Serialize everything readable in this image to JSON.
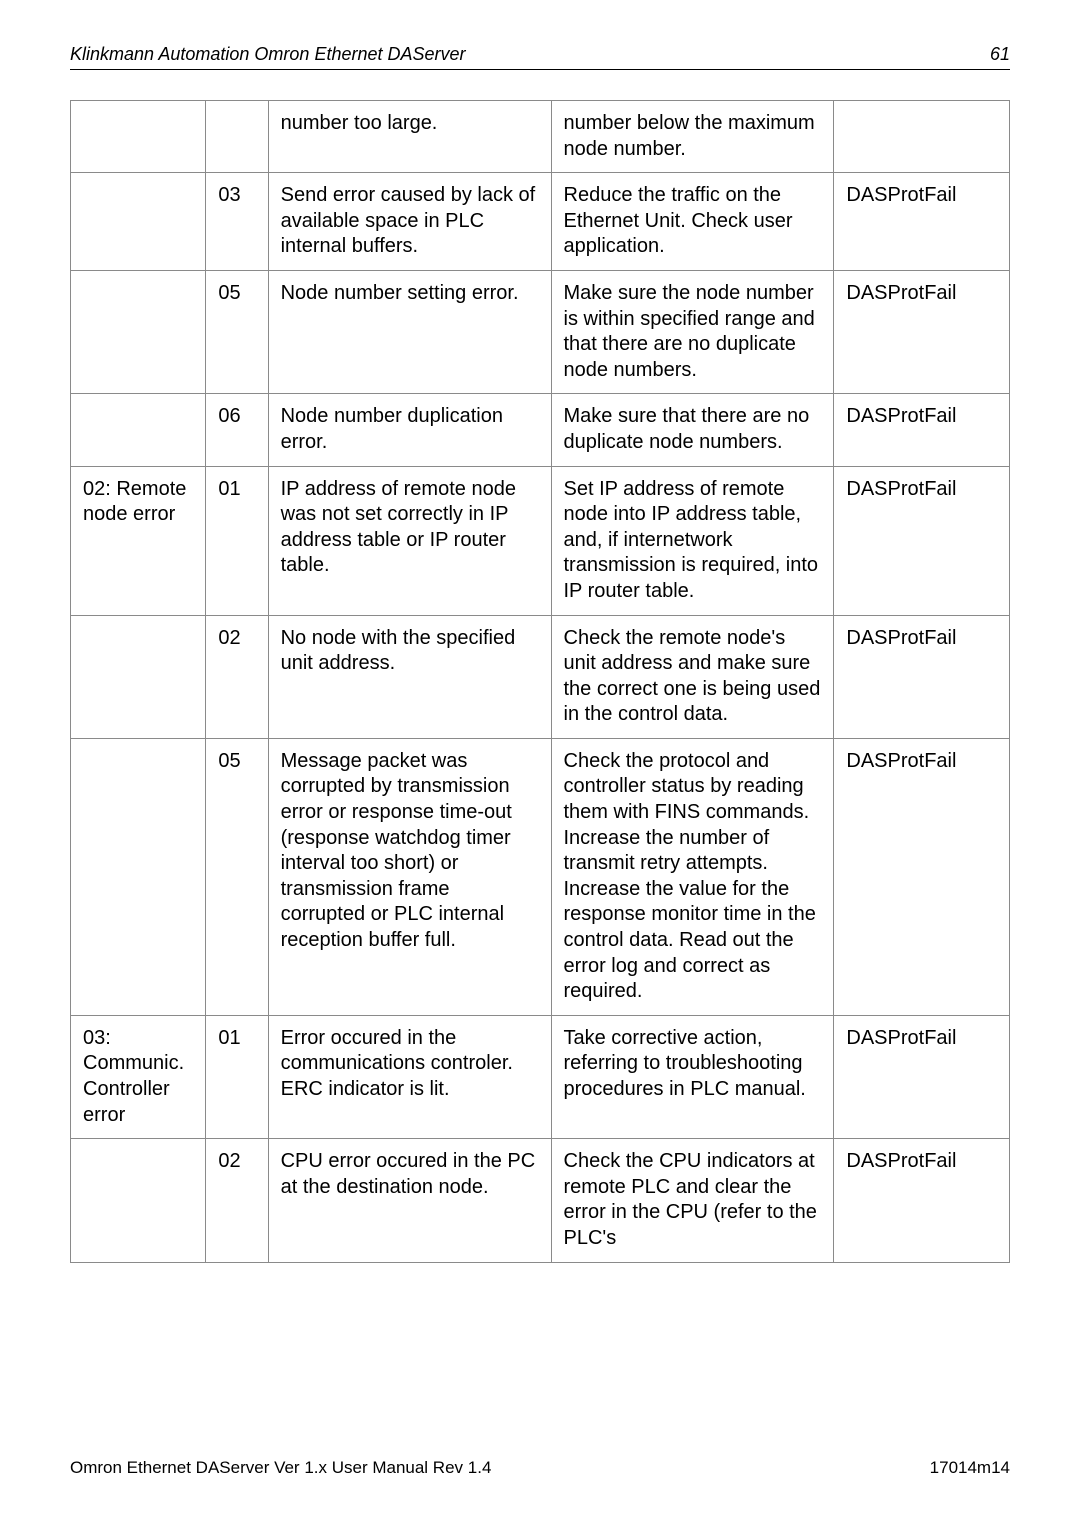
{
  "header": {
    "title": "Klinkmann Automation Omron Ethernet DAServer",
    "page": "61"
  },
  "footer": {
    "left": "Omron Ethernet DAServer Ver 1.x User Manual Rev 1.4",
    "right": "17014m14"
  },
  "rows": [
    {
      "c1": "",
      "c2": "",
      "c3": "number too large.",
      "c4": "number below the maximum node number.",
      "c5": ""
    },
    {
      "c1": "",
      "c2": "03",
      "c3": "Send error caused by lack of available space in PLC internal buffers.",
      "c4": "Reduce the traffic on the Ethernet Unit. Check user application.",
      "c5": "DASProtFail"
    },
    {
      "c1": "",
      "c2": "05",
      "c3": "Node number setting error.",
      "c4": "Make sure the node number is within specified range and that there are no duplicate node numbers.",
      "c5": "DASProtFail"
    },
    {
      "c1": "",
      "c2": "06",
      "c3": "Node number duplication error.",
      "c4": "Make sure that there are no duplicate node numbers.",
      "c5": "DASProtFail"
    },
    {
      "c1": "02: Remote node error",
      "c2": "01",
      "c3": "IP address of remote node was not set correctly in IP address table or IP router table.",
      "c4": "Set IP address of remote node into IP address table, and, if internetwork transmission is required, into IP router table.",
      "c5": "DASProtFail"
    },
    {
      "c1": "",
      "c2": "02",
      "c3": "No node with the specified unit address.",
      "c4": "Check the remote node's unit address and make sure the correct one is being used in the control data.",
      "c5": "DASProtFail"
    },
    {
      "c1": "",
      "c2": "05",
      "c3": "Message packet was corrupted by transmission error or response time-out (response watchdog timer interval too short) or transmission frame corrupted or PLC internal reception buffer full.",
      "c4": "Check the protocol and controller status by reading them with FINS commands. Increase the number of transmit retry attempts.\nIncrease the value for the response monitor time in the control data. Read out the error log and correct as required.",
      "c5": "DASProtFail"
    },
    {
      "c1": "03: Communic. Controller error",
      "c2": "01",
      "c3": "Error occured in the communications controler. ERC indicator is lit.",
      "c4": "Take corrective action, referring to troubleshooting procedures in PLC manual.",
      "c5": "DASProtFail"
    },
    {
      "c1": "",
      "c2": "02",
      "c3": "CPU error occured in the PC at the destination node.",
      "c4": "Check the CPU indicators at remote PLC and clear the error in the CPU (refer to the PLC's",
      "c5": "DASProtFail"
    }
  ]
}
